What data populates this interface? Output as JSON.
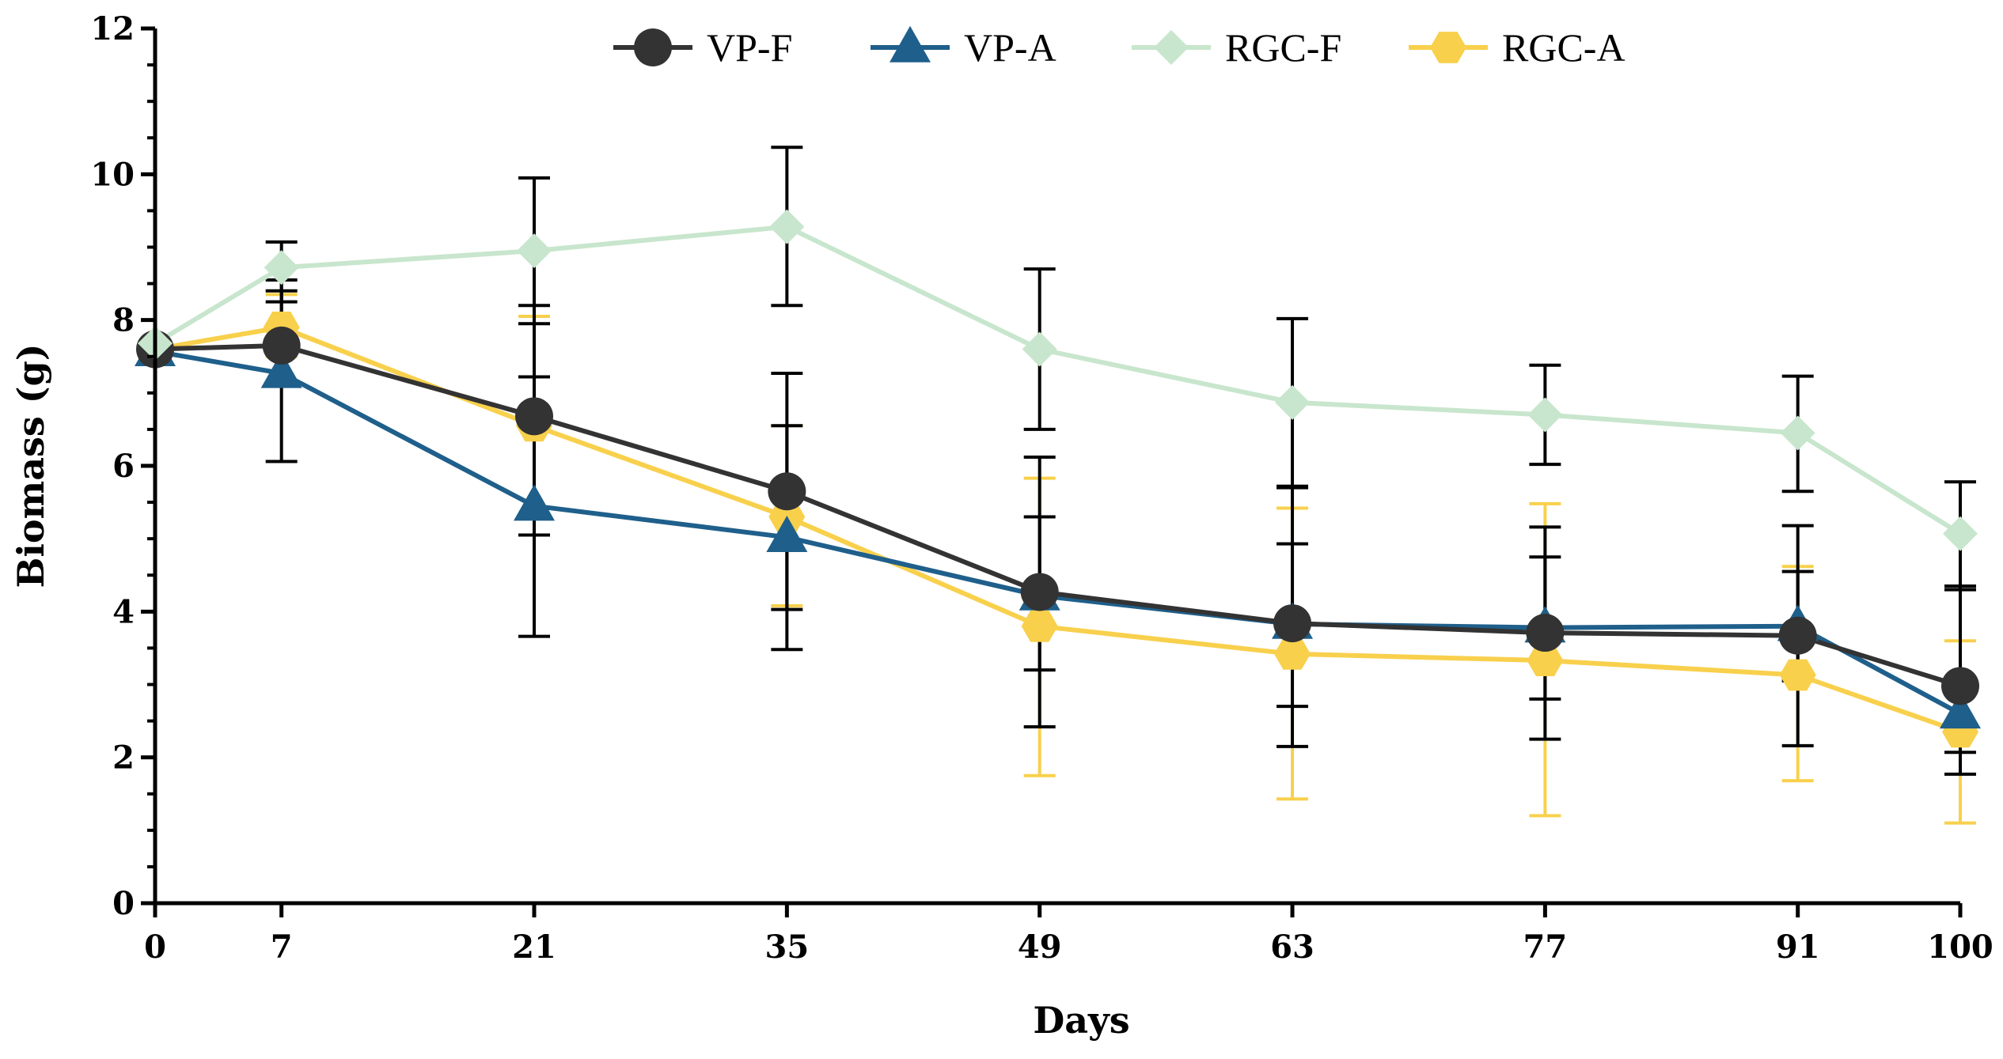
{
  "chart_data": {
    "type": "line",
    "title": "",
    "xlabel": "Days",
    "ylabel": "Biomass (g)",
    "x": [
      0,
      7,
      21,
      35,
      49,
      63,
      77,
      91,
      100
    ],
    "x_tick_labels": [
      "0",
      "7",
      "21",
      "35",
      "49",
      "63",
      "77",
      "91",
      "100"
    ],
    "xlim": [
      0,
      100
    ],
    "ylim": [
      0,
      12
    ],
    "y_ticks": [
      0,
      2,
      4,
      6,
      8,
      10,
      12
    ],
    "y_tick_labels": [
      "0",
      "2",
      "4",
      "6",
      "8",
      "10",
      "12"
    ],
    "legend_position": "top-center",
    "grid": false,
    "series": [
      {
        "name": "RGC-A",
        "color": "#f8d04c",
        "marker": "hexagon",
        "values": [
          7.6,
          7.9,
          6.55,
          5.3,
          3.8,
          3.42,
          3.33,
          3.13,
          2.35
        ],
        "error_low": [
          null,
          7.5,
          5.05,
          4.08,
          1.75,
          1.43,
          1.2,
          1.68,
          1.1
        ],
        "error_high": [
          null,
          8.35,
          8.05,
          6.55,
          5.83,
          5.42,
          5.48,
          4.62,
          3.6
        ]
      },
      {
        "name": "VP-A",
        "color": "#1f5f8b",
        "marker": "triangle",
        "values": [
          7.57,
          7.27,
          5.45,
          5.02,
          4.22,
          3.83,
          3.78,
          3.8,
          2.6
        ],
        "error_low": [
          null,
          6.06,
          3.66,
          3.48,
          3.2,
          2.7,
          2.8,
          3.05,
          2.07
        ],
        "error_high": [
          null,
          8.55,
          7.22,
          6.55,
          5.3,
          4.93,
          4.75,
          4.55,
          4.3
        ]
      },
      {
        "name": "VP-F",
        "color": "#333333",
        "marker": "circle",
        "values": [
          7.6,
          7.65,
          6.68,
          5.65,
          4.27,
          3.84,
          3.71,
          3.67,
          2.98
        ],
        "error_low": [
          null,
          7.15,
          5.05,
          4.03,
          2.42,
          2.15,
          2.25,
          2.16,
          1.77
        ],
        "error_high": [
          null,
          8.4,
          8.2,
          7.27,
          6.12,
          5.7,
          5.16,
          5.18,
          4.35
        ]
      },
      {
        "name": "RGC-F",
        "color": "#c8e6cd",
        "marker": "diamond",
        "values": [
          7.68,
          8.72,
          8.95,
          9.28,
          7.6,
          6.87,
          6.7,
          6.45,
          5.07
        ],
        "error_low": [
          null,
          8.25,
          7.95,
          8.2,
          6.5,
          5.72,
          6.02,
          5.65,
          4.35
        ],
        "error_high": [
          null,
          9.07,
          9.95,
          10.37,
          8.7,
          8.02,
          7.38,
          7.23,
          5.78
        ]
      }
    ],
    "legend_order": [
      "VP-F",
      "VP-A",
      "RGC-F",
      "RGC-A"
    ]
  }
}
